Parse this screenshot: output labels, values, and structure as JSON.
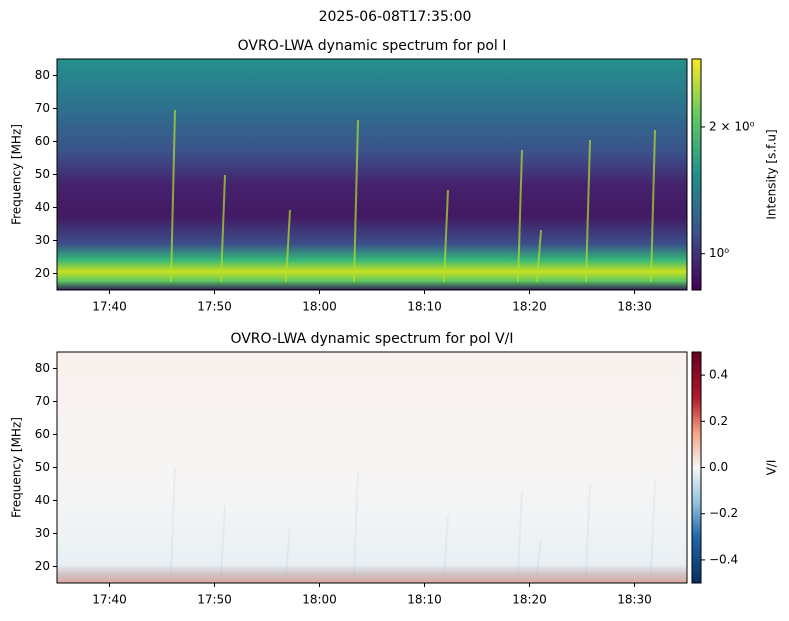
{
  "title": "2025-06-08T17:35:00",
  "chart_data": [
    {
      "type": "heatmap",
      "title": "OVRO-LWA dynamic spectrum for pol I",
      "ylabel": "Frequency [MHz]",
      "xlim": [
        "17:35",
        "18:35"
      ],
      "xticks": [
        "17:40",
        "17:50",
        "18:00",
        "18:10",
        "18:20",
        "18:30"
      ],
      "ylim": [
        15,
        85
      ],
      "yticks": [
        20,
        30,
        40,
        50,
        60,
        70,
        80
      ],
      "colorbar": {
        "label": "Intensity [s.f.u]",
        "colormap": "viridis",
        "log": true,
        "lim": [
          0.82,
          2.9
        ],
        "ticks": [
          {
            "value": 1,
            "label": "10⁰"
          },
          {
            "value": 2,
            "label": "2 × 10⁰"
          }
        ]
      }
    },
    {
      "type": "heatmap",
      "title": "OVRO-LWA dynamic spectrum for pol V/I",
      "ylabel": "Frequency [MHz]",
      "xlim": [
        "17:35",
        "18:35"
      ],
      "xticks": [
        "17:40",
        "17:50",
        "18:00",
        "18:10",
        "18:20",
        "18:30"
      ],
      "ylim": [
        15,
        85
      ],
      "yticks": [
        20,
        30,
        40,
        50,
        60,
        70,
        80
      ],
      "colorbar": {
        "label": "V/I",
        "colormap": "RdBu_r",
        "log": false,
        "lim": [
          -0.5,
          0.5
        ],
        "ticks": [
          {
            "value": -0.4,
            "label": "−0.4"
          },
          {
            "value": -0.2,
            "label": "−0.2"
          },
          {
            "value": 0,
            "label": "0.0"
          },
          0.2,
          0.4
        ]
      }
    }
  ]
}
